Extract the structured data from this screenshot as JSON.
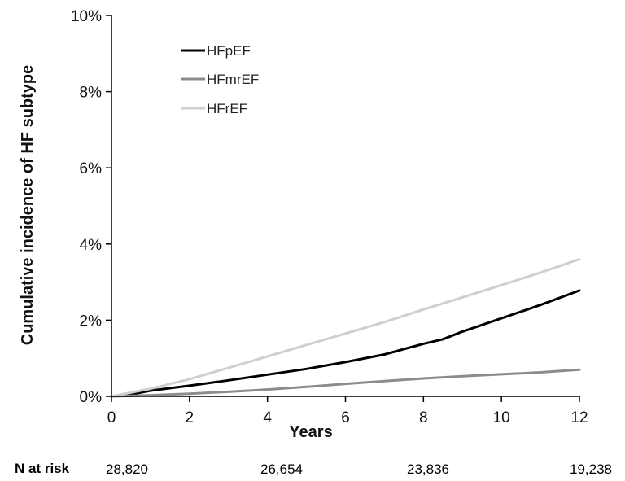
{
  "chart_data": {
    "type": "line",
    "title": "",
    "xlabel": "Years",
    "ylabel": "Cumulative incidence of HF subtype",
    "xlim": [
      0,
      12
    ],
    "ylim": [
      0,
      10
    ],
    "x_ticks": [
      "0",
      "2",
      "4",
      "6",
      "8",
      "10",
      "12"
    ],
    "y_ticks": [
      "0%",
      "2%",
      "4%",
      "6%",
      "8%",
      "10%"
    ],
    "grid": false,
    "legend_position": "top-left",
    "series": [
      {
        "name": "HFpEF",
        "color": "#000000",
        "x": [
          0,
          0.5,
          1,
          2,
          3,
          4,
          5,
          6,
          7,
          8,
          8.5,
          9,
          10,
          11,
          12
        ],
        "y": [
          0,
          0.05,
          0.15,
          0.28,
          0.42,
          0.57,
          0.72,
          0.9,
          1.1,
          1.38,
          1.5,
          1.7,
          2.05,
          2.4,
          2.78
        ]
      },
      {
        "name": "HFmrEF",
        "color": "#8c8c8c",
        "x": [
          0,
          1,
          2,
          3,
          4,
          5,
          6,
          7,
          8,
          9,
          10,
          11,
          12
        ],
        "y": [
          0,
          0.03,
          0.07,
          0.12,
          0.18,
          0.25,
          0.33,
          0.4,
          0.47,
          0.53,
          0.58,
          0.63,
          0.7
        ]
      },
      {
        "name": "HFrEF",
        "color": "#cfcfcf",
        "x": [
          0,
          1,
          2,
          3,
          4,
          5,
          6,
          7,
          8,
          9,
          10,
          11,
          12
        ],
        "y": [
          0,
          0.2,
          0.45,
          0.75,
          1.05,
          1.35,
          1.65,
          1.95,
          2.28,
          2.6,
          2.92,
          3.25,
          3.6
        ]
      }
    ]
  },
  "risk_table": {
    "label": "N at risk",
    "values": [
      "28,820",
      "26,654",
      "23,836",
      "19,238"
    ]
  }
}
